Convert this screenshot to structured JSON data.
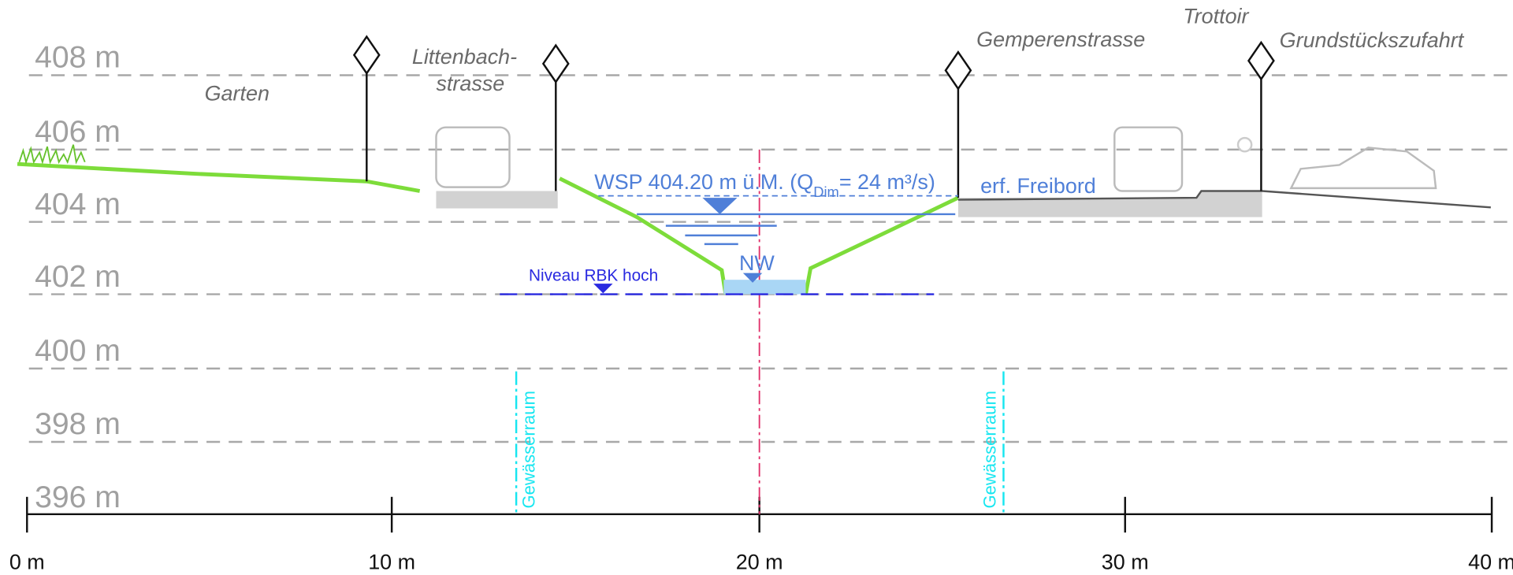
{
  "elevation_labels": [
    "408 m",
    "406 m",
    "404 m",
    "402 m",
    "400 m",
    "398 m",
    "396 m"
  ],
  "distance_labels": [
    "0 m",
    "10 m",
    "20 m",
    "30 m",
    "40 m"
  ],
  "annotations": {
    "garden": "Garten",
    "littenbach_1": "Littenbach-",
    "littenbach_2": "strasse",
    "gemperen": "Gemperenstrasse",
    "trottoir": "Trottoir",
    "driveway": "Grundstückszufahrt",
    "wsp_main": "WSP 404.20 m ü.M. (Q",
    "wsp_sub": "Dim",
    "wsp_end": "= 24 m³/s)",
    "freeboard": "erf. Freibord",
    "low_water": "NW",
    "rbk_level": "Niveau RBK hoch",
    "water_space_left": "Gewässerraum",
    "water_space_right": "Gewässerraum"
  }
}
